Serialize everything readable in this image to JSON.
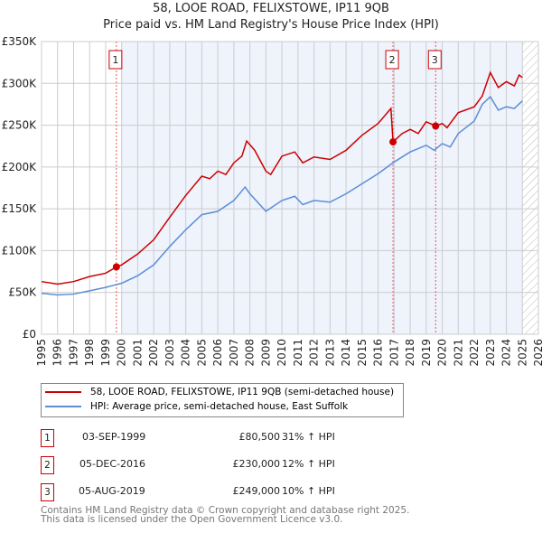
{
  "title": "58, LOOE ROAD, FELIXSTOWE, IP11 9QB",
  "subtitle": "Price paid vs. HM Land Registry's House Price Index (HPI)",
  "chart_data": {
    "type": "line",
    "xlim": [
      1995,
      2026
    ],
    "ylim": [
      0,
      350000
    ],
    "yticks": [
      {
        "v": 0,
        "label": "£0"
      },
      {
        "v": 50000,
        "label": "£50K"
      },
      {
        "v": 100000,
        "label": "£100K"
      },
      {
        "v": 150000,
        "label": "£150K"
      },
      {
        "v": 200000,
        "label": "£200K"
      },
      {
        "v": 250000,
        "label": "£250K"
      },
      {
        "v": 300000,
        "label": "£300K"
      },
      {
        "v": 350000,
        "label": "£350K"
      }
    ],
    "xticks": [
      "1995",
      "1996",
      "1997",
      "1998",
      "1999",
      "2000",
      "2001",
      "2002",
      "2003",
      "2004",
      "2005",
      "2006",
      "2007",
      "2008",
      "2009",
      "2010",
      "2011",
      "2012",
      "2013",
      "2014",
      "2015",
      "2016",
      "2017",
      "2018",
      "2019",
      "2020",
      "2021",
      "2022",
      "2023",
      "2024",
      "2025",
      "2026"
    ],
    "shaded_range": [
      2000,
      2025
    ],
    "hatched_from": 2025,
    "series": [
      {
        "name": "58, LOOE ROAD, FELIXSTOWE, IP11 9QB (semi-detached house)",
        "color": "#cc0000",
        "points": [
          [
            1995,
            63000
          ],
          [
            1996,
            60000
          ],
          [
            1997,
            63000
          ],
          [
            1998,
            69000
          ],
          [
            1999,
            73000
          ],
          [
            1999.67,
            80500
          ],
          [
            2000,
            83000
          ],
          [
            2001,
            96000
          ],
          [
            2002,
            113000
          ],
          [
            2003,
            140000
          ],
          [
            2004,
            166000
          ],
          [
            2005,
            189000
          ],
          [
            2005.5,
            186000
          ],
          [
            2006,
            195000
          ],
          [
            2006.5,
            191000
          ],
          [
            2007,
            205000
          ],
          [
            2007.5,
            213000
          ],
          [
            2007.8,
            231000
          ],
          [
            2008.3,
            220000
          ],
          [
            2009,
            195000
          ],
          [
            2009.3,
            191000
          ],
          [
            2010,
            213000
          ],
          [
            2010.8,
            218000
          ],
          [
            2011.3,
            205000
          ],
          [
            2012,
            212000
          ],
          [
            2013,
            209000
          ],
          [
            2014,
            220000
          ],
          [
            2015,
            238000
          ],
          [
            2016,
            252000
          ],
          [
            2016.8,
            270000
          ],
          [
            2016.93,
            230000
          ],
          [
            2017.5,
            240000
          ],
          [
            2018,
            245000
          ],
          [
            2018.5,
            240000
          ],
          [
            2019,
            254000
          ],
          [
            2019.6,
            249000
          ],
          [
            2020,
            252000
          ],
          [
            2020.3,
            247000
          ],
          [
            2021,
            265000
          ],
          [
            2022,
            272000
          ],
          [
            2022.5,
            285000
          ],
          [
            2023,
            313000
          ],
          [
            2023.5,
            295000
          ],
          [
            2024,
            302000
          ],
          [
            2024.5,
            297000
          ],
          [
            2024.8,
            310000
          ],
          [
            2025,
            307000
          ]
        ]
      },
      {
        "name": "HPI: Average price, semi-detached house, East Suffolk",
        "color": "#5b8ed6",
        "points": [
          [
            1995,
            49000
          ],
          [
            1996,
            47000
          ],
          [
            1997,
            48000
          ],
          [
            1998,
            52000
          ],
          [
            1999,
            56000
          ],
          [
            2000,
            61000
          ],
          [
            2001,
            70000
          ],
          [
            2002,
            83000
          ],
          [
            2003,
            105000
          ],
          [
            2004,
            125000
          ],
          [
            2005,
            143000
          ],
          [
            2006,
            147000
          ],
          [
            2007,
            160000
          ],
          [
            2007.7,
            176000
          ],
          [
            2008,
            168000
          ],
          [
            2009,
            147000
          ],
          [
            2010,
            160000
          ],
          [
            2010.8,
            165000
          ],
          [
            2011.3,
            155000
          ],
          [
            2012,
            160000
          ],
          [
            2013,
            158000
          ],
          [
            2014,
            168000
          ],
          [
            2015,
            180000
          ],
          [
            2016,
            192000
          ],
          [
            2017,
            206000
          ],
          [
            2018,
            218000
          ],
          [
            2019,
            226000
          ],
          [
            2019.5,
            220000
          ],
          [
            2020,
            228000
          ],
          [
            2020.5,
            224000
          ],
          [
            2021,
            240000
          ],
          [
            2022,
            255000
          ],
          [
            2022.5,
            275000
          ],
          [
            2023,
            284000
          ],
          [
            2023.5,
            268000
          ],
          [
            2024,
            272000
          ],
          [
            2024.5,
            270000
          ],
          [
            2025,
            279000
          ]
        ]
      }
    ],
    "sales": [
      {
        "n": "1",
        "x": 1999.67,
        "y": 80500
      },
      {
        "n": "2",
        "x": 2016.93,
        "y": 230000
      },
      {
        "n": "3",
        "x": 2019.59,
        "y": 249000
      }
    ]
  },
  "legend": {
    "red": "58, LOOE ROAD, FELIXSTOWE, IP11 9QB (semi-detached house)",
    "blue": "HPI: Average price, semi-detached house, East Suffolk"
  },
  "transactions": [
    {
      "n": "1",
      "date": "03-SEP-1999",
      "price": "£80,500",
      "hpi": "31% ↑ HPI"
    },
    {
      "n": "2",
      "date": "05-DEC-2016",
      "price": "£230,000",
      "hpi": "12% ↑ HPI"
    },
    {
      "n": "3",
      "date": "05-AUG-2019",
      "price": "£249,000",
      "hpi": "10% ↑ HPI"
    }
  ],
  "footer": {
    "line1": "Contains HM Land Registry data © Crown copyright and database right 2025.",
    "line2": "This data is licensed under the Open Government Licence v3.0."
  }
}
